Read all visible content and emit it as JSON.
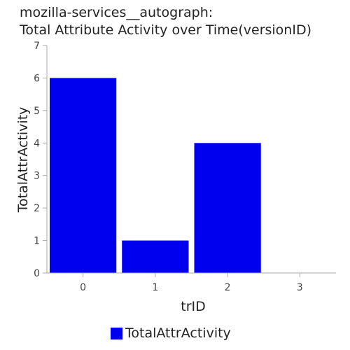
{
  "chart_data": {
    "type": "bar",
    "title_lines": [
      "mozilla-services__autograph:",
      "Total Attribute Activity over Time(versionID)"
    ],
    "xlabel": "trID",
    "ylabel": "TotalAttrActivity",
    "categories": [
      "0",
      "1",
      "2",
      "3"
    ],
    "series": [
      {
        "name": "TotalAttrActivity",
        "values": [
          6,
          1,
          4,
          0
        ],
        "color": "#0000ee"
      }
    ],
    "ylim": [
      0,
      7
    ],
    "yticks": [
      0,
      1,
      2,
      3,
      4,
      5,
      6,
      7
    ],
    "grid": false,
    "legend_position": "bottom-center"
  }
}
